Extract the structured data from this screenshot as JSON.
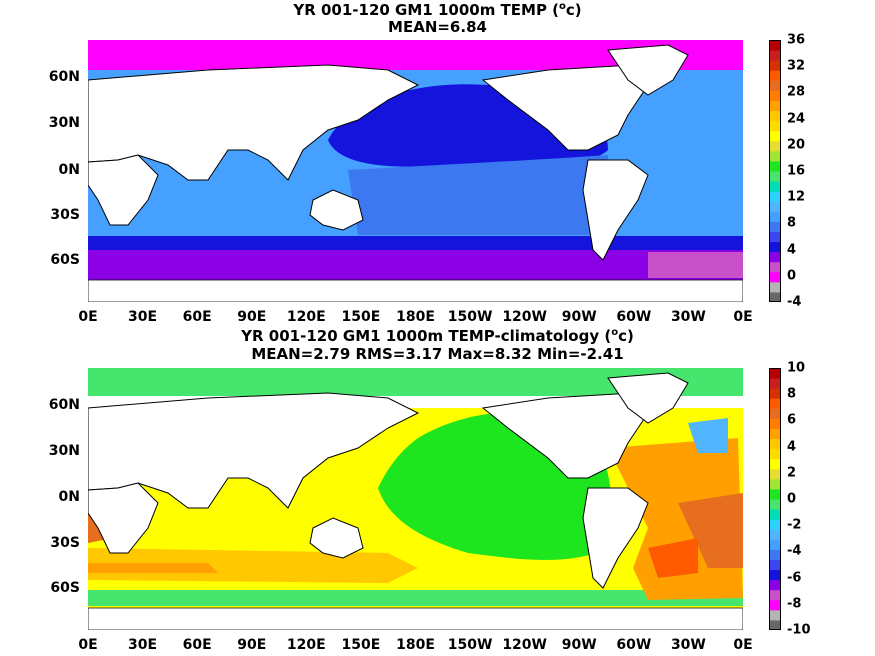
{
  "panel1": {
    "title_prefix": "YR 001-120 GM1 1000m TEMP (",
    "title_sup": "o",
    "title_suffix": "c)",
    "subtitle": "MEAN=6.84",
    "lat_labels": [
      "60N",
      "30N",
      "0N",
      "30S",
      "60S"
    ],
    "lon_labels": [
      "0E",
      "30E",
      "60E",
      "90E",
      "120E",
      "150E",
      "180E",
      "150W",
      "120W",
      "90W",
      "60W",
      "30W",
      "0E"
    ],
    "colorbar": {
      "labels": [
        "36",
        "32",
        "28",
        "24",
        "20",
        "16",
        "12",
        "8",
        "4",
        "0",
        "-4"
      ],
      "colors": [
        "#686868",
        "#b5b5b5",
        "#ff00ff",
        "#c850c8",
        "#8c00e6",
        "#1414dc",
        "#3c46f0",
        "#3c78f0",
        "#46a0ff",
        "#50b4ff",
        "#2dd2ff",
        "#00dcb4",
        "#46e66e",
        "#1ee61e",
        "#a0e632",
        "#e6dc32",
        "#ffff00",
        "#ffdc00",
        "#ffc800",
        "#ffa000",
        "#ff7d00",
        "#e66e1e",
        "#ff5a00",
        "#d23200",
        "#c81e1e",
        "#b40000"
      ]
    }
  },
  "panel2": {
    "title_prefix": "YR 001-120 GM1 1000m TEMP-climatology (",
    "title_sup": "o",
    "title_suffix": "c)",
    "subtitle": "MEAN=2.79   RMS=3.17   Max=8.32   Min=-2.41",
    "lat_labels": [
      "60N",
      "30N",
      "0N",
      "30S",
      "60S"
    ],
    "lon_labels": [
      "0E",
      "30E",
      "60E",
      "90E",
      "120E",
      "150E",
      "180E",
      "150W",
      "120W",
      "90W",
      "60W",
      "30W",
      "0E"
    ],
    "colorbar": {
      "labels": [
        "10",
        "8",
        "6",
        "4",
        "2",
        "0",
        "-2",
        "-4",
        "-6",
        "-8",
        "-10"
      ],
      "colors": [
        "#686868",
        "#b5b5b5",
        "#ff00ff",
        "#c850c8",
        "#8c00e6",
        "#1414dc",
        "#3c46f0",
        "#3c78f0",
        "#46a0ff",
        "#50b4ff",
        "#2dd2ff",
        "#00dcb4",
        "#46e66e",
        "#1ee61e",
        "#a0e632",
        "#e6dc32",
        "#ffff00",
        "#ffdc00",
        "#ffc800",
        "#ffa000",
        "#ff7d00",
        "#e66e1e",
        "#ff5a00",
        "#d23200",
        "#c81e1e",
        "#b40000"
      ]
    }
  }
}
